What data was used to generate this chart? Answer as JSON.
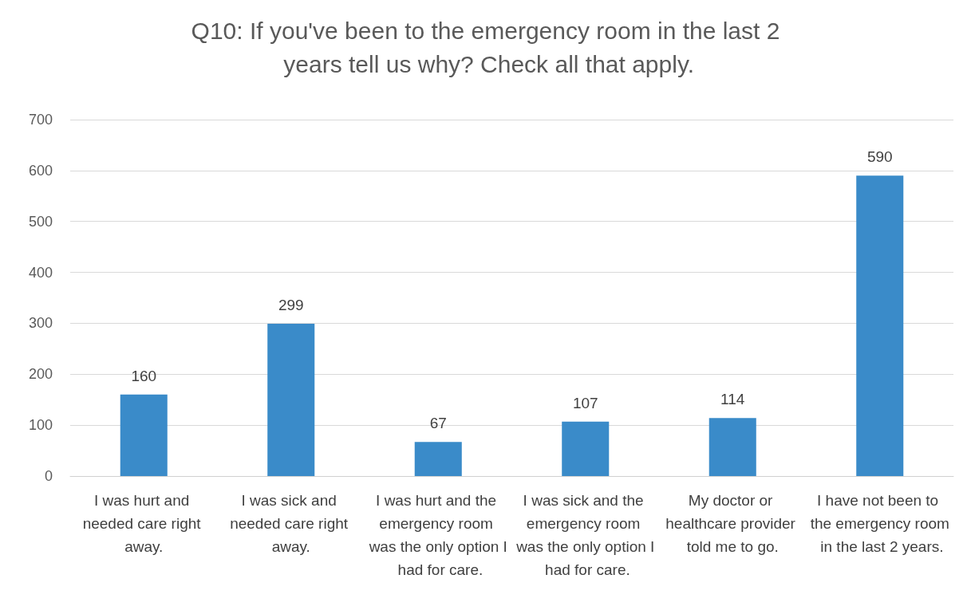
{
  "chart_data": {
    "type": "bar",
    "title": "Q10: If you've been to the emergency room in the last 2 years tell us why? Check all that apply.",
    "categories": [
      "I was hurt and needed care right away.",
      "I was sick and needed care right away.",
      "I was hurt and the emergency room was the only option I had for care.",
      "I was sick and the emergency room was the only option I had for care.",
      "My doctor or healthcare provider told me to go.",
      "I have not been to the emergency room in the last 2 years."
    ],
    "values": [
      160,
      299,
      67,
      107,
      114,
      590
    ],
    "color": "#3a8bc9",
    "ylim": [
      0,
      700
    ],
    "yticks": [
      0,
      100,
      200,
      300,
      400,
      500,
      600,
      700
    ],
    "grid": "y",
    "data_labels": true
  }
}
